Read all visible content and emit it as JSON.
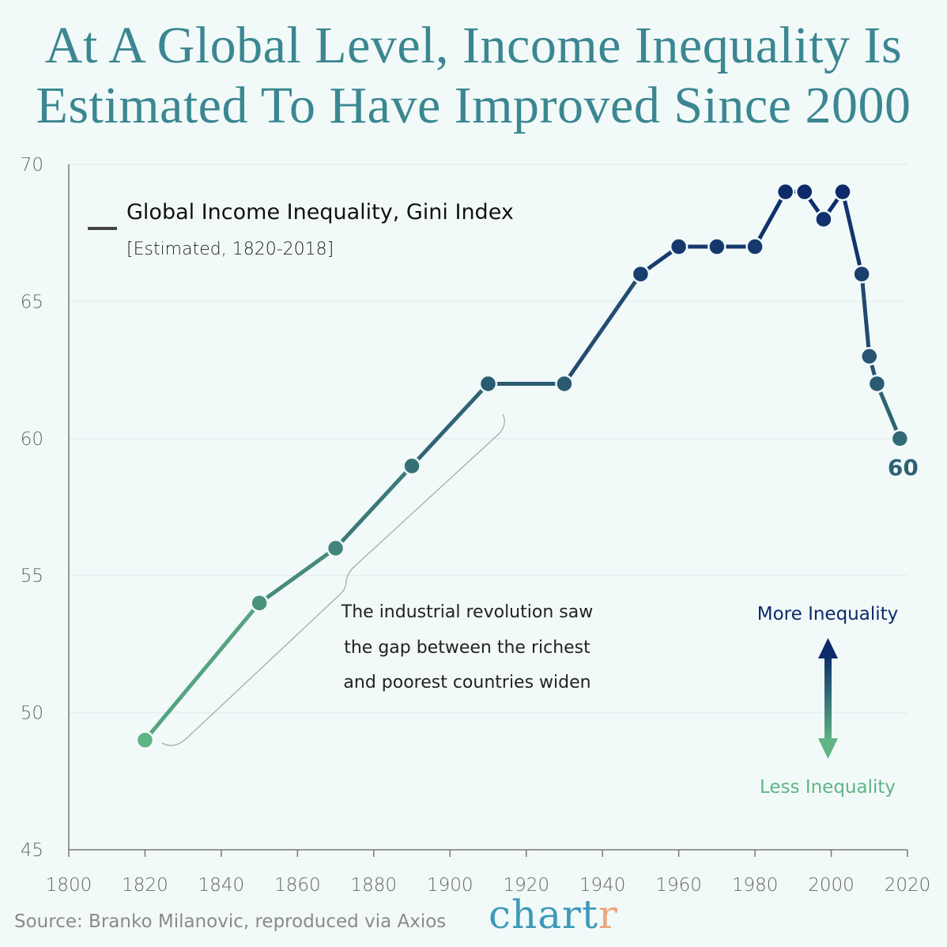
{
  "title_line1": "At A Global Level, Income Inequality Is",
  "title_line2": "Estimated To Have Improved Since 2000",
  "source": "Source: Branko Milanovic, reproduced via Axios",
  "logo": {
    "main": "chart",
    "accent": "r",
    "main_color": "#3d9ab8",
    "accent_color": "#eea57c"
  },
  "colors": {
    "low": "#5fb583",
    "high": "#0d2a6b",
    "background": "#f2faf9"
  },
  "chart_data": {
    "type": "line",
    "legend": {
      "title": "Global Income Inequality, Gini Index",
      "subtitle": "[Estimated, 1820-2018]",
      "placement": "top-left"
    },
    "x": [
      1820,
      1850,
      1870,
      1890,
      1910,
      1930,
      1950,
      1960,
      1970,
      1980,
      1988,
      1993,
      1998,
      2003,
      2008,
      2010,
      2012,
      2018
    ],
    "y": [
      49,
      54,
      56,
      59,
      62,
      62,
      66,
      67,
      67,
      67,
      69,
      69,
      68,
      69,
      66,
      63,
      62,
      60
    ],
    "xlim": [
      1800,
      2020
    ],
    "ylim": [
      45,
      70
    ],
    "xticks": [
      1800,
      1820,
      1840,
      1860,
      1880,
      1900,
      1920,
      1940,
      1960,
      1980,
      2000,
      2020
    ],
    "yticks": [
      45,
      50,
      55,
      60,
      65,
      70
    ],
    "grid": "horizontal",
    "end_label": "60",
    "annotation": [
      "The industrial revolution saw",
      "the gap between the richest",
      "and poorest countries widen"
    ],
    "arrow_labels": {
      "up": "More Inequality",
      "down": "Less Inequality"
    }
  }
}
